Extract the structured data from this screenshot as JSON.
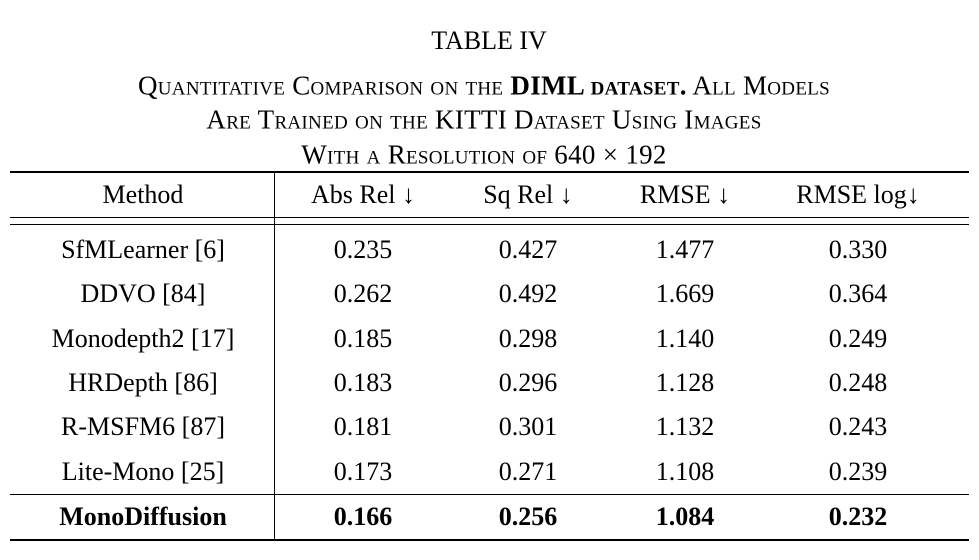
{
  "title": "TABLE IV",
  "caption": {
    "line1": {
      "text": "Quantitative Comparison on the",
      "bold": "DIML dataset.",
      "rest": "All Models"
    },
    "line2": "Are Trained on the KITTI Dataset Using Images",
    "line3": "With a Resolution of 640 × 192"
  },
  "table": {
    "header": [
      "Method",
      "Abs Rel ↓",
      "Sq Rel ↓",
      "RMSE ↓",
      "RMSE log↓"
    ],
    "rows": [
      [
        "SfMLearner [6]",
        "0.235",
        "0.427",
        "1.477",
        "0.330"
      ],
      [
        "DDVO [84]",
        "0.262",
        "0.492",
        "1.669",
        "0.364"
      ],
      [
        "Monodepth2 [17]",
        "0.185",
        "0.298",
        "1.140",
        "0.249"
      ],
      [
        "HRDepth [86]",
        "0.183",
        "0.296",
        "1.128",
        "0.248"
      ],
      [
        "R-MSFM6 [87]",
        "0.181",
        "0.301",
        "1.132",
        "0.243"
      ],
      [
        "Lite-Mono [25]",
        "0.173",
        "0.271",
        "1.108",
        "0.239"
      ]
    ],
    "best_row": [
      "MonoDiffusion",
      "0.166",
      "0.256",
      "1.084",
      "0.232"
    ]
  }
}
